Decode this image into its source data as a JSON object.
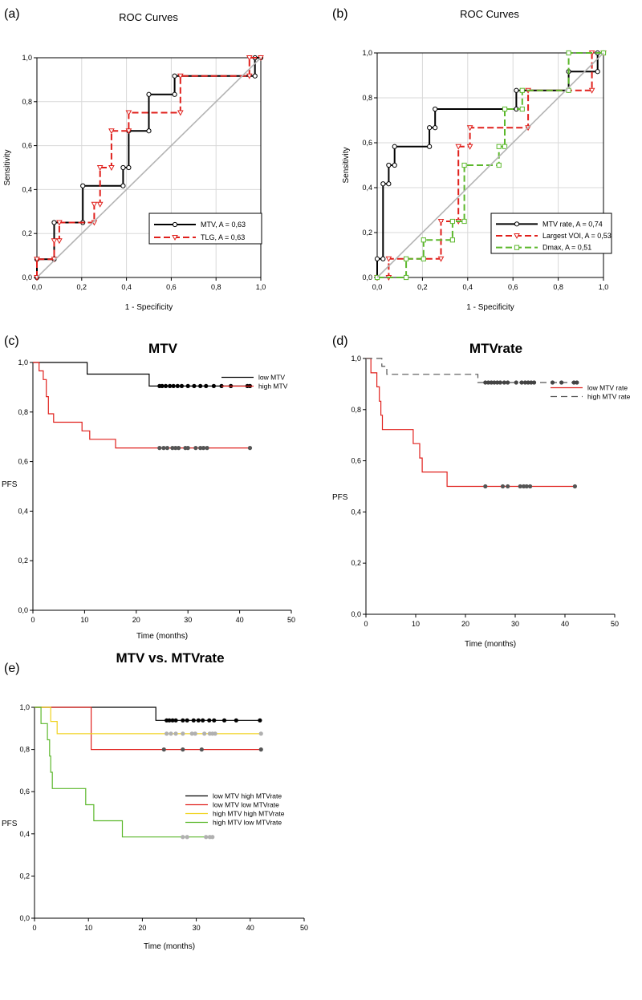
{
  "chart_data": [
    {
      "panel": "(a)",
      "type": "line",
      "title": "ROC Curves",
      "xlabel": "1 - Specificity",
      "ylabel": "Sensitivity",
      "xlim": [
        0,
        1
      ],
      "ylim": [
        0,
        1
      ],
      "xticks": [
        "0,0",
        "0,2",
        "0,4",
        "0,6",
        "0,8",
        "1,0"
      ],
      "yticks": [
        "0,0",
        "0,2",
        "0,4",
        "0,6",
        "0,8",
        "1,0"
      ],
      "grid": true,
      "legend_position": "lower-right",
      "series": [
        {
          "name": "MTV, A = 0,63",
          "color": "#000000",
          "dash": "",
          "marker": "circle",
          "points": [
            [
              0,
              0
            ],
            [
              0,
              0.083
            ],
            [
              0.077,
              0.083
            ],
            [
              0.077,
              0.25
            ],
            [
              0.205,
              0.25
            ],
            [
              0.205,
              0.417
            ],
            [
              0.385,
              0.417
            ],
            [
              0.385,
              0.5
            ],
            [
              0.41,
              0.5
            ],
            [
              0.41,
              0.667
            ],
            [
              0.5,
              0.667
            ],
            [
              0.5,
              0.833
            ],
            [
              0.615,
              0.833
            ],
            [
              0.615,
              0.917
            ],
            [
              0.974,
              0.917
            ],
            [
              0.974,
              1.0
            ],
            [
              1.0,
              1.0
            ]
          ]
        },
        {
          "name": "TLG, A = 0,63",
          "color": "#e0201c",
          "dash": "8,4",
          "marker": "triangle",
          "points": [
            [
              0,
              0
            ],
            [
              0,
              0.083
            ],
            [
              0.077,
              0.083
            ],
            [
              0.077,
              0.167
            ],
            [
              0.1,
              0.167
            ],
            [
              0.1,
              0.25
            ],
            [
              0.256,
              0.25
            ],
            [
              0.256,
              0.333
            ],
            [
              0.282,
              0.333
            ],
            [
              0.282,
              0.5
            ],
            [
              0.333,
              0.5
            ],
            [
              0.333,
              0.667
            ],
            [
              0.41,
              0.667
            ],
            [
              0.41,
              0.75
            ],
            [
              0.641,
              0.75
            ],
            [
              0.641,
              0.917
            ],
            [
              0.949,
              0.917
            ],
            [
              0.949,
              1.0
            ],
            [
              1.0,
              1.0
            ]
          ]
        },
        {
          "name": "Reference",
          "color": "#b4b4b4",
          "dash": "",
          "marker": "none",
          "points": [
            [
              0,
              0
            ],
            [
              1,
              1
            ]
          ]
        }
      ]
    },
    {
      "panel": "(b)",
      "type": "line",
      "title": "ROC Curves",
      "xlabel": "1 - Specificity",
      "ylabel": "Sensitivity",
      "xlim": [
        0,
        1
      ],
      "ylim": [
        0,
        1
      ],
      "xticks": [
        "0,0",
        "0,2",
        "0,4",
        "0,6",
        "0,8",
        "1,0"
      ],
      "yticks": [
        "0,0",
        "0,2",
        "0,4",
        "0,6",
        "0,8",
        "1,0"
      ],
      "grid": true,
      "legend_position": "lower-right",
      "series": [
        {
          "name": "MTV rate, A = 0,74",
          "color": "#000000",
          "dash": "",
          "marker": "circle",
          "points": [
            [
              0,
              0
            ],
            [
              0,
              0.083
            ],
            [
              0.026,
              0.083
            ],
            [
              0.026,
              0.417
            ],
            [
              0.051,
              0.417
            ],
            [
              0.051,
              0.5
            ],
            [
              0.077,
              0.5
            ],
            [
              0.077,
              0.583
            ],
            [
              0.231,
              0.583
            ],
            [
              0.231,
              0.667
            ],
            [
              0.256,
              0.667
            ],
            [
              0.256,
              0.75
            ],
            [
              0.615,
              0.75
            ],
            [
              0.615,
              0.833
            ],
            [
              0.846,
              0.833
            ],
            [
              0.846,
              0.917
            ],
            [
              0.974,
              0.917
            ],
            [
              0.974,
              1.0
            ],
            [
              1.0,
              1.0
            ]
          ]
        },
        {
          "name": "Largest VOI, A = 0,53",
          "color": "#e0201c",
          "dash": "8,4",
          "marker": "triangle",
          "points": [
            [
              0,
              0
            ],
            [
              0.051,
              0
            ],
            [
              0.051,
              0.083
            ],
            [
              0.282,
              0.083
            ],
            [
              0.282,
              0.25
            ],
            [
              0.359,
              0.25
            ],
            [
              0.359,
              0.583
            ],
            [
              0.41,
              0.583
            ],
            [
              0.41,
              0.667
            ],
            [
              0.667,
              0.667
            ],
            [
              0.667,
              0.833
            ],
            [
              0.949,
              0.833
            ],
            [
              0.949,
              1.0
            ],
            [
              1.0,
              1.0
            ]
          ]
        },
        {
          "name": "Dmax, A = 0,51",
          "color": "#5cb82c",
          "dash": "8,4",
          "marker": "square",
          "points": [
            [
              0,
              0
            ],
            [
              0.128,
              0
            ],
            [
              0.128,
              0.083
            ],
            [
              0.205,
              0.083
            ],
            [
              0.205,
              0.167
            ],
            [
              0.333,
              0.167
            ],
            [
              0.333,
              0.25
            ],
            [
              0.385,
              0.25
            ],
            [
              0.385,
              0.5
            ],
            [
              0.538,
              0.5
            ],
            [
              0.538,
              0.583
            ],
            [
              0.564,
              0.583
            ],
            [
              0.564,
              0.75
            ],
            [
              0.641,
              0.75
            ],
            [
              0.641,
              0.833
            ],
            [
              0.846,
              0.833
            ],
            [
              0.846,
              1.0
            ],
            [
              1.0,
              1.0
            ]
          ]
        },
        {
          "name": "Reference",
          "color": "#b4b4b4",
          "dash": "",
          "marker": "none",
          "points": [
            [
              0,
              0
            ],
            [
              1,
              1
            ]
          ]
        }
      ]
    },
    {
      "panel": "(c)",
      "type": "line",
      "title": "MTV",
      "xlabel": "Time (months)",
      "ylabel": "PFS",
      "xlim": [
        0,
        50
      ],
      "ylim": [
        0,
        1
      ],
      "xticks": [
        "0",
        "10",
        "20",
        "30",
        "40",
        "50"
      ],
      "yticks": [
        "0,0",
        "0,2",
        "0,4",
        "0,6",
        "0,8",
        "1,0"
      ],
      "grid": false,
      "legend_position": "top-right",
      "series": [
        {
          "name": "low MTV",
          "color": "#000000",
          "dash": "",
          "points": [
            [
              0,
              1.0
            ],
            [
              10.5,
              1.0
            ],
            [
              10.5,
              0.953
            ],
            [
              22.5,
              0.953
            ],
            [
              22.5,
              0.905
            ],
            [
              42,
              0.905
            ]
          ],
          "censored": [
            24.5,
            25,
            25.7,
            26.5,
            27.2,
            28,
            28.8,
            30,
            31.2,
            32.4,
            33.5,
            35,
            36.5,
            38.3,
            41.5,
            42
          ]
        },
        {
          "name": "high MTV",
          "color": "#e0201c",
          "dash": "",
          "points": [
            [
              0,
              1.0
            ],
            [
              1.2,
              1.0
            ],
            [
              1.2,
              0.966
            ],
            [
              2,
              0.966
            ],
            [
              2,
              0.931
            ],
            [
              2.6,
              0.931
            ],
            [
              2.6,
              0.862
            ],
            [
              3,
              0.862
            ],
            [
              3,
              0.793
            ],
            [
              4,
              0.793
            ],
            [
              4,
              0.759
            ],
            [
              9.5,
              0.759
            ],
            [
              9.5,
              0.724
            ],
            [
              11,
              0.724
            ],
            [
              11,
              0.69
            ],
            [
              16,
              0.69
            ],
            [
              16,
              0.655
            ],
            [
              42,
              0.655
            ]
          ],
          "censored": [
            24.5,
            25.3,
            26,
            27,
            27.6,
            28.2,
            29.5,
            30,
            31.5,
            32.4,
            33,
            33.7,
            42
          ]
        }
      ]
    },
    {
      "panel": "(d)",
      "type": "line",
      "title": "MTVrate",
      "xlabel": "Time (months)",
      "ylabel": "PFS",
      "xlim": [
        0,
        50
      ],
      "ylim": [
        0,
        1
      ],
      "xticks": [
        "0",
        "10",
        "20",
        "30",
        "40",
        "50"
      ],
      "yticks": [
        "0,0",
        "0,2",
        "0,4",
        "0,6",
        "0,8",
        "1,0"
      ],
      "grid": false,
      "legend_position": "right",
      "series": [
        {
          "name": "low MTV rate",
          "color": "#e0201c",
          "dash": "",
          "points": [
            [
              0,
              1.0
            ],
            [
              1,
              1.0
            ],
            [
              1,
              0.944
            ],
            [
              2.2,
              0.944
            ],
            [
              2.2,
              0.889
            ],
            [
              2.7,
              0.889
            ],
            [
              2.7,
              0.833
            ],
            [
              3,
              0.833
            ],
            [
              3,
              0.778
            ],
            [
              3.3,
              0.778
            ],
            [
              3.3,
              0.722
            ],
            [
              9.5,
              0.722
            ],
            [
              9.5,
              0.667
            ],
            [
              10.8,
              0.667
            ],
            [
              10.8,
              0.611
            ],
            [
              11.3,
              0.611
            ],
            [
              11.3,
              0.556
            ],
            [
              16.3,
              0.556
            ],
            [
              16.3,
              0.5
            ],
            [
              42,
              0.5
            ]
          ],
          "censored": [
            24,
            27.5,
            28.5,
            31,
            31.7,
            32.3,
            33,
            42
          ]
        },
        {
          "name": "high MTV rate",
          "color": "#555555",
          "dash": "8,5",
          "points": [
            [
              0,
              1.0
            ],
            [
              3.2,
              1.0
            ],
            [
              3.2,
              0.969
            ],
            [
              4.2,
              0.969
            ],
            [
              4.2,
              0.938
            ],
            [
              22.5,
              0.938
            ],
            [
              22.5,
              0.906
            ],
            [
              42.5,
              0.906
            ]
          ],
          "censored": [
            24,
            24.6,
            25.2,
            25.8,
            26.4,
            27,
            27.8,
            28.5,
            30.2,
            31.3,
            32,
            32.6,
            33.2,
            33.8,
            37.5,
            39.3,
            41.8,
            42.4
          ]
        }
      ]
    },
    {
      "panel": "(e)",
      "type": "line",
      "title": "MTV vs. MTVrate",
      "xlabel": "Time (months)",
      "ylabel": "PFS",
      "xlim": [
        0,
        50
      ],
      "ylim": [
        0,
        1
      ],
      "xticks": [
        "0",
        "10",
        "20",
        "30",
        "40",
        "50"
      ],
      "yticks": [
        "0,0",
        "0,2",
        "0,4",
        "0,6",
        "0,8",
        "1,0"
      ],
      "grid": false,
      "legend_position": "right",
      "series": [
        {
          "name": "low MTV high MTVrate",
          "color": "#000000",
          "dash": "",
          "points": [
            [
              0,
              1.0
            ],
            [
              22.5,
              1.0
            ],
            [
              22.5,
              0.938
            ],
            [
              42,
              0.938
            ]
          ],
          "censored": [
            24.5,
            25,
            25.6,
            26.2,
            27.5,
            28.3,
            29.5,
            30.4,
            31.2,
            32.4,
            33.3,
            35.2,
            37.4,
            41.8
          ]
        },
        {
          "name": "low MTV low MTVrate",
          "color": "#e0201c",
          "dash": "",
          "points": [
            [
              0,
              1.0
            ],
            [
              10.5,
              1.0
            ],
            [
              10.5,
              0.8
            ],
            [
              42,
              0.8
            ]
          ],
          "censored": [
            24,
            27.5,
            31,
            42
          ]
        },
        {
          "name": "high MTV high MTVrate",
          "color": "#f0d21e",
          "dash": "",
          "points": [
            [
              0,
              1.0
            ],
            [
              3,
              1.0
            ],
            [
              3,
              0.933
            ],
            [
              4.2,
              0.933
            ],
            [
              4.2,
              0.875
            ],
            [
              42,
              0.875
            ]
          ],
          "censored": [
            24.5,
            25.3,
            26.2,
            27.5,
            29.2,
            29.8,
            31.5,
            32.5,
            33,
            33.5,
            42
          ]
        },
        {
          "name": "high MTV low MTVrate",
          "color": "#5cb82c",
          "dash": "",
          "points": [
            [
              0,
              1.0
            ],
            [
              1.2,
              1.0
            ],
            [
              1.2,
              0.923
            ],
            [
              2.4,
              0.923
            ],
            [
              2.4,
              0.846
            ],
            [
              2.8,
              0.846
            ],
            [
              2.8,
              0.769
            ],
            [
              3,
              0.769
            ],
            [
              3,
              0.692
            ],
            [
              3.3,
              0.692
            ],
            [
              3.3,
              0.615
            ],
            [
              9.5,
              0.615
            ],
            [
              9.5,
              0.538
            ],
            [
              11,
              0.538
            ],
            [
              11,
              0.462
            ],
            [
              16.3,
              0.462
            ],
            [
              16.3,
              0.385
            ],
            [
              33,
              0.385
            ]
          ],
          "censored": [
            27.5,
            28.3,
            31.8,
            32.5,
            33
          ]
        }
      ]
    }
  ]
}
